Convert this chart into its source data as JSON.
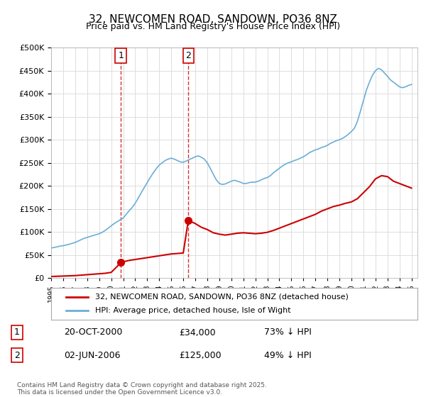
{
  "title": "32, NEWCOMEN ROAD, SANDOWN, PO36 8NZ",
  "subtitle": "Price paid vs. HM Land Registry's House Price Index (HPI)",
  "legend_line1": "32, NEWCOMEN ROAD, SANDOWN, PO36 8NZ (detached house)",
  "legend_line2": "HPI: Average price, detached house, Isle of Wight",
  "annotation1": {
    "label": "1",
    "date": "20-OCT-2000",
    "price": "£34,000",
    "hpi_pct": "73% ↓ HPI"
  },
  "annotation2": {
    "label": "2",
    "date": "02-JUN-2006",
    "price": "£125,000",
    "hpi_pct": "49% ↓ HPI"
  },
  "footnote": "Contains HM Land Registry data © Crown copyright and database right 2025.\nThis data is licensed under the Open Government Licence v3.0.",
  "hpi_color": "#6baed6",
  "price_paid_color": "#cc0000",
  "marker_color": "#cc0000",
  "vline_color": "#cc0000",
  "background_color": "#ffffff",
  "grid_color": "#dddddd",
  "ylim": [
    0,
    500000
  ],
  "yticks": [
    0,
    50000,
    100000,
    150000,
    200000,
    250000,
    300000,
    350000,
    400000,
    450000,
    500000
  ],
  "xlim_start": 1995.0,
  "xlim_end": 2025.5,
  "sale1_year": 2000.8,
  "sale1_price": 34000,
  "sale2_year": 2006.42,
  "sale2_price": 125000,
  "hpi_years": [
    1995,
    1995.25,
    1995.5,
    1995.75,
    1996,
    1996.25,
    1996.5,
    1996.75,
    1997,
    1997.25,
    1997.5,
    1997.75,
    1998,
    1998.25,
    1998.5,
    1998.75,
    1999,
    1999.25,
    1999.5,
    1999.75,
    2000,
    2000.25,
    2000.5,
    2000.75,
    2001,
    2001.25,
    2001.5,
    2001.75,
    2002,
    2002.25,
    2002.5,
    2002.75,
    2003,
    2003.25,
    2003.5,
    2003.75,
    2004,
    2004.25,
    2004.5,
    2004.75,
    2005,
    2005.25,
    2005.5,
    2005.75,
    2006,
    2006.25,
    2006.5,
    2006.75,
    2007,
    2007.25,
    2007.5,
    2007.75,
    2008,
    2008.25,
    2008.5,
    2008.75,
    2009,
    2009.25,
    2009.5,
    2009.75,
    2010,
    2010.25,
    2010.5,
    2010.75,
    2011,
    2011.25,
    2011.5,
    2011.75,
    2012,
    2012.25,
    2012.5,
    2012.75,
    2013,
    2013.25,
    2013.5,
    2013.75,
    2014,
    2014.25,
    2014.5,
    2014.75,
    2015,
    2015.25,
    2015.5,
    2015.75,
    2016,
    2016.25,
    2016.5,
    2016.75,
    2017,
    2017.25,
    2017.5,
    2017.75,
    2018,
    2018.25,
    2018.5,
    2018.75,
    2019,
    2019.25,
    2019.5,
    2019.75,
    2020,
    2020.25,
    2020.5,
    2020.75,
    2021,
    2021.25,
    2021.5,
    2021.75,
    2022,
    2022.25,
    2022.5,
    2022.75,
    2023,
    2023.25,
    2023.5,
    2023.75,
    2024,
    2024.25,
    2024.5,
    2024.75,
    2025
  ],
  "hpi_values": [
    65000,
    66000,
    67500,
    69000,
    70000,
    71500,
    73000,
    75000,
    77000,
    80000,
    83000,
    86000,
    88000,
    90000,
    92000,
    94000,
    96000,
    99000,
    103000,
    108000,
    113000,
    118000,
    122000,
    126000,
    130000,
    138000,
    146000,
    153000,
    162000,
    173000,
    185000,
    196000,
    207000,
    218000,
    228000,
    237000,
    245000,
    250000,
    255000,
    258000,
    260000,
    258000,
    255000,
    252000,
    251000,
    254000,
    257000,
    260000,
    263000,
    265000,
    262000,
    258000,
    250000,
    238000,
    225000,
    213000,
    205000,
    203000,
    204000,
    207000,
    210000,
    212000,
    210000,
    208000,
    205000,
    205000,
    207000,
    208000,
    208000,
    210000,
    213000,
    216000,
    218000,
    222000,
    228000,
    233000,
    238000,
    243000,
    247000,
    250000,
    252000,
    255000,
    257000,
    260000,
    263000,
    267000,
    272000,
    275000,
    278000,
    280000,
    283000,
    285000,
    288000,
    292000,
    295000,
    298000,
    300000,
    303000,
    307000,
    312000,
    318000,
    325000,
    340000,
    362000,
    385000,
    408000,
    425000,
    440000,
    450000,
    455000,
    452000,
    445000,
    438000,
    430000,
    425000,
    420000,
    415000,
    413000,
    415000,
    418000,
    420000
  ],
  "price_paid_years": [
    2000.8,
    2006.42
  ],
  "price_paid_values": [
    34000,
    125000
  ]
}
